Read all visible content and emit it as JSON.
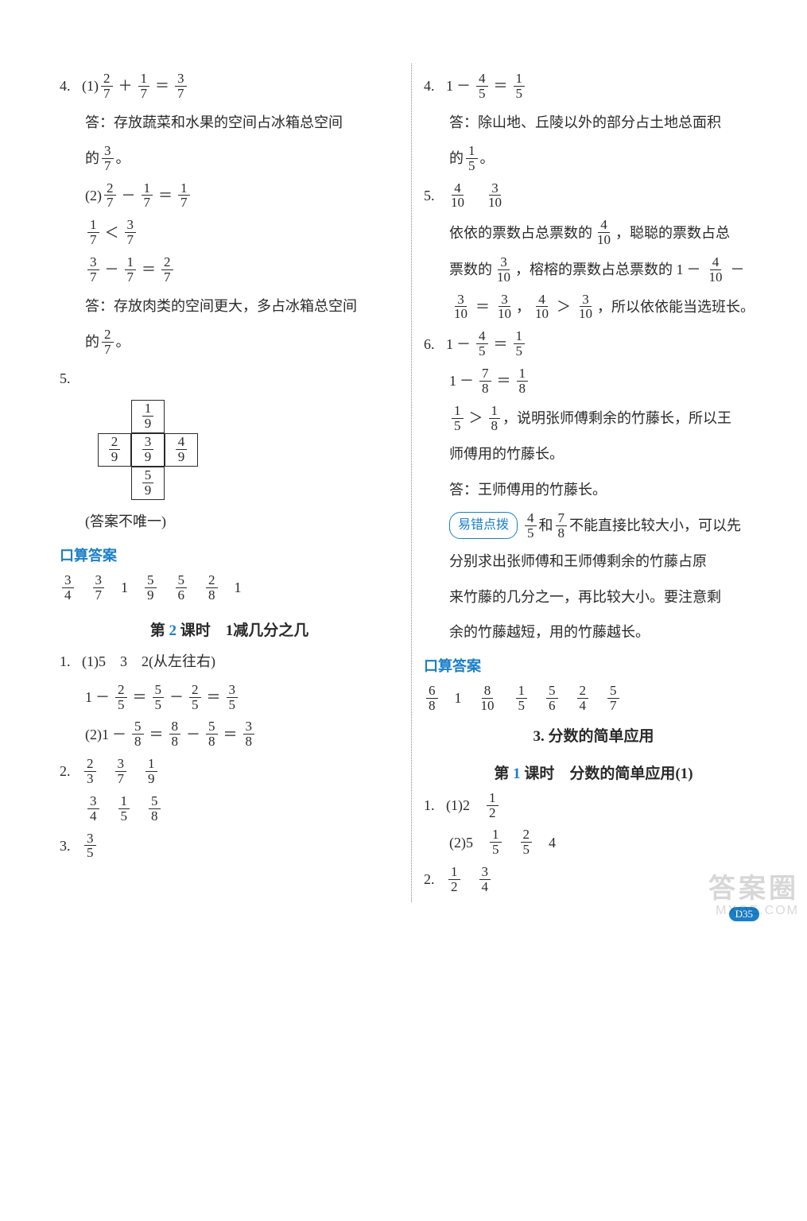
{
  "left": {
    "q4": {
      "num": "4.",
      "part1_label": "(1)",
      "eq1": {
        "a_n": "2",
        "a_d": "7",
        "op1": "＋",
        "b_n": "1",
        "b_d": "7",
        "op2": "＝",
        "c_n": "3",
        "c_d": "7"
      },
      "ans1_prefix": "答：存放蔬菜和水果的空间占冰箱总空间",
      "ans1_tail_pre": "的",
      "ans1_frac": {
        "n": "3",
        "d": "7"
      },
      "ans1_tail_post": "。",
      "part2_label": "(2)",
      "eq2": {
        "a_n": "2",
        "a_d": "7",
        "op1": "－",
        "b_n": "1",
        "b_d": "7",
        "op2": "＝",
        "c_n": "1",
        "c_d": "7"
      },
      "cmp": {
        "a_n": "1",
        "a_d": "7",
        "op": "＜",
        "b_n": "3",
        "b_d": "7"
      },
      "eq3": {
        "a_n": "3",
        "a_d": "7",
        "op1": "－",
        "b_n": "1",
        "b_d": "7",
        "op2": "＝",
        "c_n": "2",
        "c_d": "7"
      },
      "ans2_prefix": "答：存放肉类的空间更大，多占冰箱总空间",
      "ans2_tail_pre": "的",
      "ans2_frac": {
        "n": "2",
        "d": "7"
      },
      "ans2_tail_post": "。"
    },
    "q5": {
      "num": "5.",
      "cells": {
        "top": {
          "n": "1",
          "d": "9"
        },
        "left": {
          "n": "2",
          "d": "9"
        },
        "center": {
          "n": "3",
          "d": "9"
        },
        "right": {
          "n": "4",
          "d": "9"
        },
        "bottom": {
          "n": "5",
          "d": "9"
        }
      },
      "note": "(答案不唯一)"
    },
    "oral": {
      "title": "口算答案",
      "items": [
        {
          "n": "3",
          "d": "4"
        },
        {
          "n": "3",
          "d": "7"
        },
        {
          "int": "1"
        },
        {
          "n": "5",
          "d": "9"
        },
        {
          "n": "5",
          "d": "6"
        },
        {
          "n": "2",
          "d": "8"
        },
        {
          "int": "1"
        }
      ]
    },
    "lesson2": {
      "title_pre": "第 ",
      "title_num": "2",
      "title_post": " 课时　1减几分之几",
      "q1": {
        "num": "1.",
        "p1_label": "(1)",
        "p1_vals": "5　3　2(从左往右)",
        "eq1": {
          "pre": "1",
          "op0": "－",
          "a_n": "2",
          "a_d": "5",
          "op1": "＝",
          "b_n": "5",
          "b_d": "5",
          "op2": "－",
          "c_n": "2",
          "c_d": "5",
          "op3": "＝",
          "d_n": "3",
          "d_d": "5"
        },
        "p2_label": "(2)",
        "eq2": {
          "pre": "1",
          "op0": "－",
          "a_n": "5",
          "a_d": "8",
          "op1": "＝",
          "b_n": "8",
          "b_d": "8",
          "op2": "－",
          "c_n": "5",
          "c_d": "8",
          "op3": "＝",
          "d_n": "3",
          "d_d": "8"
        }
      },
      "q2": {
        "num": "2.",
        "row1": [
          {
            "n": "2",
            "d": "3"
          },
          {
            "n": "3",
            "d": "7"
          },
          {
            "n": "1",
            "d": "9"
          }
        ],
        "row2": [
          {
            "n": "3",
            "d": "4"
          },
          {
            "n": "1",
            "d": "5"
          },
          {
            "n": "5",
            "d": "8"
          }
        ]
      },
      "q3": {
        "num": "3.",
        "frac": {
          "n": "3",
          "d": "5"
        }
      }
    }
  },
  "right": {
    "q4": {
      "num": "4.",
      "eq": {
        "pre": "1",
        "op0": "－",
        "a_n": "4",
        "a_d": "5",
        "op1": "＝",
        "b_n": "1",
        "b_d": "5"
      },
      "ans_prefix": "答：除山地、丘陵以外的部分占土地总面积",
      "ans_tail_pre": "的",
      "ans_frac": {
        "n": "1",
        "d": "5"
      },
      "ans_tail_post": "。"
    },
    "q5": {
      "num": "5.",
      "head": [
        {
          "n": "4",
          "d": "10"
        },
        {
          "n": "3",
          "d": "10"
        }
      ],
      "l1_a": "依依的票数占总票数的",
      "l1_f": {
        "n": "4",
        "d": "10"
      },
      "l1_b": "，聪聪的票数占总",
      "l2_a": "票数的",
      "l2_f1": {
        "n": "3",
        "d": "10"
      },
      "l2_b": "，榕榕的票数占总票数的 1",
      "l2_op1": "－",
      "l2_f2": {
        "n": "4",
        "d": "10"
      },
      "l2_op2": "－",
      "l3_f1": {
        "n": "3",
        "d": "10"
      },
      "l3_eq": "＝",
      "l3_f2": {
        "n": "3",
        "d": "10"
      },
      "l3_comma": "，",
      "l3_f3": {
        "n": "4",
        "d": "10"
      },
      "l3_gt": "＞",
      "l3_f4": {
        "n": "3",
        "d": "10"
      },
      "l3_tail": "，所以依依能当选班长。"
    },
    "q6": {
      "num": "6.",
      "eq1": {
        "pre": "1",
        "op0": "－",
        "a_n": "4",
        "a_d": "5",
        "op1": "＝",
        "b_n": "1",
        "b_d": "5"
      },
      "eq2": {
        "pre": "1",
        "op0": "－",
        "a_n": "7",
        "a_d": "8",
        "op1": "＝",
        "b_n": "1",
        "b_d": "8"
      },
      "cmp_a": {
        "n": "1",
        "d": "5"
      },
      "cmp_op": "＞",
      "cmp_b": {
        "n": "1",
        "d": "8"
      },
      "cmp_tail": "，说明张师傅剩余的竹藤长，所以王",
      "cmp_tail2": "师傅用的竹藤长。",
      "ans": "答：王师傅用的竹藤长。",
      "tip_label": "易错点拨",
      "tip_f1": {
        "n": "4",
        "d": "5"
      },
      "tip_and": " 和 ",
      "tip_f2": {
        "n": "7",
        "d": "8"
      },
      "tip_t1": " 不能直接比较大小，可以先",
      "tip_t2": "分别求出张师傅和王师傅剩余的竹藤占原",
      "tip_t3": "来竹藤的几分之一，再比较大小。要注意剩",
      "tip_t4": "余的竹藤越短，用的竹藤越长。"
    },
    "oral": {
      "title": "口算答案",
      "items": [
        {
          "n": "6",
          "d": "8"
        },
        {
          "int": "1"
        },
        {
          "n": "8",
          "d": "10"
        },
        {
          "n": "1",
          "d": "5"
        },
        {
          "n": "5",
          "d": "6"
        },
        {
          "n": "2",
          "d": "4"
        },
        {
          "n": "5",
          "d": "7"
        }
      ]
    },
    "section3": {
      "title": "3. 分数的简单应用",
      "lesson_pre": "第 ",
      "lesson_num": "1",
      "lesson_post": " 课时　分数的简单应用(1)",
      "q1": {
        "num": "1.",
        "p1_label": "(1)",
        "p1_int": "2",
        "p1_frac": {
          "n": "1",
          "d": "2"
        },
        "p2_label": "(2)",
        "p2_int": "5",
        "p2_f1": {
          "n": "1",
          "d": "5"
        },
        "p2_f2": {
          "n": "2",
          "d": "5"
        },
        "p2_int2": "4"
      },
      "q2": {
        "num": "2.",
        "f1": {
          "n": "1",
          "d": "2"
        },
        "f2": {
          "n": "3",
          "d": "4"
        }
      }
    }
  },
  "footer": {
    "badge": "D35"
  },
  "watermark": {
    "l1": "答案圈",
    "l2": "MXQE.COM"
  }
}
